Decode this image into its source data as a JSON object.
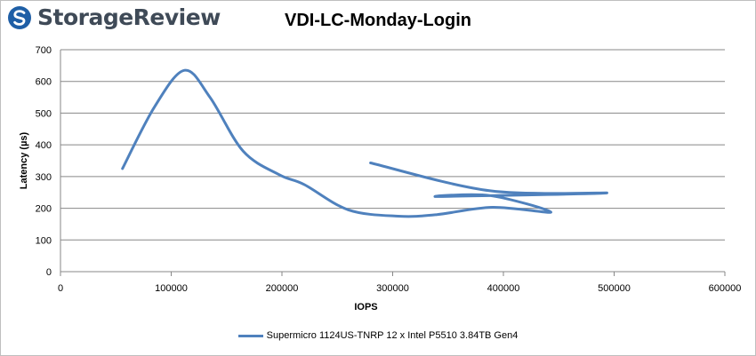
{
  "brand": {
    "name": "StorageReview",
    "accent": "#1f5fa6"
  },
  "chart_data": {
    "type": "line",
    "title": "VDI-LC-Monday-Login",
    "xlabel": "IOPS",
    "ylabel": "Latency (µs)",
    "xlim": [
      0,
      600000
    ],
    "ylim": [
      0,
      700
    ],
    "xticks": [
      0,
      100000,
      200000,
      300000,
      400000,
      500000,
      600000
    ],
    "yticks": [
      0,
      100,
      200,
      300,
      400,
      500,
      600,
      700
    ],
    "grid": true,
    "legend_position": "bottom",
    "series": [
      {
        "name": "Supermicro 1124US-TNRP 12 x Intel P5510 3.84TB Gen4",
        "color": "#4f81bd",
        "x": [
          56000,
          85000,
          112000,
          135000,
          165000,
          198000,
          220000,
          260000,
          305000,
          340000,
          390000,
          443000,
          388000,
          342000,
          493000,
          388000,
          280000
        ],
        "y": [
          325,
          520,
          635,
          550,
          380,
          305,
          275,
          195,
          175,
          180,
          203,
          188,
          240,
          237,
          248,
          255,
          343
        ]
      }
    ]
  }
}
